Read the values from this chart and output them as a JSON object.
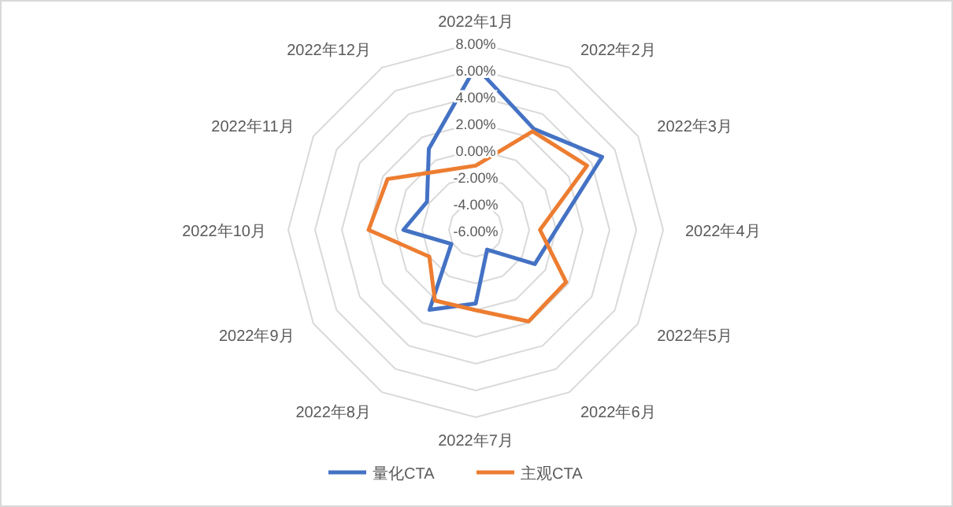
{
  "chart_data": {
    "type": "radar",
    "categories": [
      "2022年1月",
      "2022年2月",
      "2022年3月",
      "2022年4月",
      "2022年5月",
      "2022年6月",
      "2022年7月",
      "2022年8月",
      "2022年9月",
      "2022年10月",
      "2022年11月",
      "2022年12月"
    ],
    "series": [
      {
        "name": "量化CTA",
        "color": "#4472c4",
        "values": [
          6.2,
          2.7,
          4.9,
          0.0,
          -0.9,
          -4.3,
          -0.5,
          0.9,
          -3.9,
          -0.6,
          -1.8,
          1.0
        ]
      },
      {
        "name": "主观CTA",
        "color": "#ed7d31",
        "values": [
          -1.2,
          2.5,
          3.6,
          -1.2,
          1.8,
          1.9,
          0.0,
          0.1,
          -2.0,
          2.0,
          1.6,
          -0.9
        ]
      }
    ],
    "ylim": [
      -6,
      8
    ],
    "yticks": [
      {
        "value": -6,
        "label": "-6.00%"
      },
      {
        "value": -4,
        "label": "-4.00%"
      },
      {
        "value": -2,
        "label": "-2.00%"
      },
      {
        "value": 0,
        "label": "0.00%"
      },
      {
        "value": 2,
        "label": "2.00%"
      },
      {
        "value": 4,
        "label": "4.00%"
      },
      {
        "value": 6,
        "label": "6.00%"
      },
      {
        "value": 8,
        "label": "8.00%"
      }
    ],
    "grid": true,
    "legend": "bottom",
    "marker": "none",
    "line_style": "solid"
  }
}
